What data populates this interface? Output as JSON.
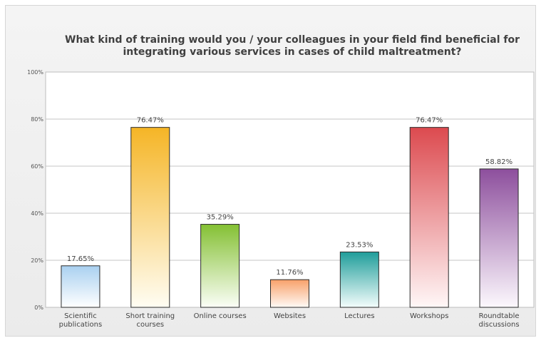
{
  "chart_data": {
    "type": "bar",
    "title_lines": [
      "What kind of training would you / your colleagues in your field find beneficial for",
      "integrating various services in cases of child maltreatment?"
    ],
    "categories": [
      [
        "Scientific",
        "publications"
      ],
      [
        "Short training",
        "courses"
      ],
      [
        "Online courses"
      ],
      [
        "Websites"
      ],
      [
        "Lectures"
      ],
      [
        "Workshops"
      ],
      [
        "Roundtable",
        "discussions"
      ]
    ],
    "values": [
      17.65,
      76.47,
      35.29,
      11.76,
      23.53,
      76.47,
      58.82
    ],
    "value_labels": [
      "17.65%",
      "76.47%",
      "35.29%",
      "11.76%",
      "23.53%",
      "76.47%",
      "58.82%"
    ],
    "colors": [
      [
        "#a9d0f0",
        "#ffffff"
      ],
      [
        "#f5b526",
        "#fffdf3"
      ],
      [
        "#84c033",
        "#fbfef7"
      ],
      [
        "#f8a16a",
        "#fffaf6"
      ],
      [
        "#1f9d9a",
        "#f4fdfc"
      ],
      [
        "#dc4a4f",
        "#fff7f7"
      ],
      [
        "#8d4f9d",
        "#fcf8fd"
      ]
    ],
    "ylim": [
      0,
      100
    ],
    "y_ticks": [
      0,
      20,
      40,
      60,
      80,
      100
    ],
    "y_tick_labels": [
      "0%",
      "20%",
      "40%",
      "60%",
      "80%",
      "100%"
    ],
    "grid": true,
    "xlabel": "",
    "ylabel": ""
  }
}
